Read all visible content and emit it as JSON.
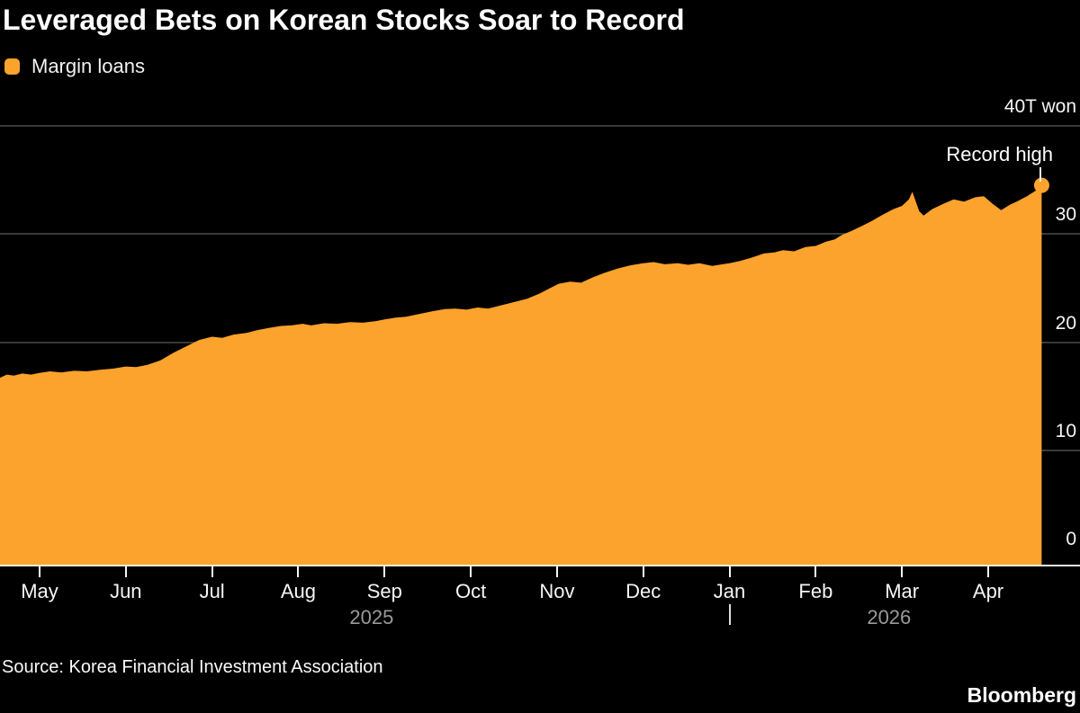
{
  "title": "Leveraged Bets on Korean Stocks Soar to Record",
  "legend": {
    "label": "Margin loans"
  },
  "annotation": {
    "record_high": "Record high"
  },
  "source": "Source: Korea Financial Investment Association",
  "brand": "Bloomberg",
  "colors": {
    "series": "#FBA32C",
    "background": "#000000",
    "gridline": "#3A3A3A",
    "axis_line": "#F2EBDC",
    "tick_mark": "#F5F5F5",
    "tick_label": "#F5F5F5",
    "year_label": "#999999",
    "pointer": "#ECECEC"
  },
  "chart_data": {
    "type": "area",
    "title": "Leveraged Bets on Korean Stocks Soar to Record",
    "series_name": "Margin loans",
    "unit": "trillion won",
    "x_unit": "months, 0 = May 2025 tick ... 11 = Apr 2026 tick",
    "x_range": [
      -0.46,
      11.62
    ],
    "ylim": [
      0,
      40
    ],
    "grid": "horizontal",
    "x_tick_labels": [
      "May",
      "Jun",
      "Jul",
      "Aug",
      "Sep",
      "Oct",
      "Nov",
      "Dec",
      "Jan",
      "Feb",
      "Mar",
      "Apr"
    ],
    "year_labels": [
      {
        "label": "2025",
        "center_month": 3.85
      },
      {
        "label": "2026",
        "center_month": 9.85
      }
    ],
    "year_divider_month": 8.0,
    "y_ticks": [
      {
        "value": 0,
        "label": "0"
      },
      {
        "value": 10,
        "label": "10"
      },
      {
        "value": 20,
        "label": "20"
      },
      {
        "value": 30,
        "label": "30"
      },
      {
        "value": 40,
        "label": "40T won"
      }
    ],
    "gridlines_at": [
      10,
      20,
      30,
      40
    ],
    "annotation": {
      "text": "Record high",
      "at_month": 11.62,
      "at_value": 34.5
    },
    "end_dot": {
      "month": 11.62,
      "value": 34.5
    },
    "points": [
      [
        -0.46,
        16.7
      ],
      [
        -0.38,
        17.0
      ],
      [
        -0.3,
        16.9
      ],
      [
        -0.2,
        17.1
      ],
      [
        -0.1,
        17.0
      ],
      [
        0.0,
        17.15
      ],
      [
        0.12,
        17.3
      ],
      [
        0.25,
        17.2
      ],
      [
        0.4,
        17.35
      ],
      [
        0.55,
        17.3
      ],
      [
        0.7,
        17.45
      ],
      [
        0.85,
        17.55
      ],
      [
        1.0,
        17.75
      ],
      [
        1.12,
        17.7
      ],
      [
        1.25,
        17.9
      ],
      [
        1.4,
        18.3
      ],
      [
        1.55,
        19.0
      ],
      [
        1.7,
        19.6
      ],
      [
        1.85,
        20.2
      ],
      [
        2.0,
        20.5
      ],
      [
        2.12,
        20.4
      ],
      [
        2.25,
        20.7
      ],
      [
        2.4,
        20.85
      ],
      [
        2.52,
        21.1
      ],
      [
        2.65,
        21.3
      ],
      [
        2.8,
        21.5
      ],
      [
        2.92,
        21.55
      ],
      [
        3.05,
        21.7
      ],
      [
        3.15,
        21.55
      ],
      [
        3.3,
        21.75
      ],
      [
        3.45,
        21.7
      ],
      [
        3.6,
        21.85
      ],
      [
        3.75,
        21.8
      ],
      [
        3.9,
        21.95
      ],
      [
        4.0,
        22.1
      ],
      [
        4.12,
        22.25
      ],
      [
        4.25,
        22.35
      ],
      [
        4.4,
        22.6
      ],
      [
        4.55,
        22.85
      ],
      [
        4.7,
        23.05
      ],
      [
        4.82,
        23.1
      ],
      [
        4.95,
        23.0
      ],
      [
        5.08,
        23.2
      ],
      [
        5.2,
        23.1
      ],
      [
        5.35,
        23.4
      ],
      [
        5.5,
        23.7
      ],
      [
        5.65,
        24.0
      ],
      [
        5.8,
        24.5
      ],
      [
        5.92,
        25.0
      ],
      [
        6.02,
        25.4
      ],
      [
        6.15,
        25.6
      ],
      [
        6.28,
        25.5
      ],
      [
        6.42,
        26.0
      ],
      [
        6.55,
        26.4
      ],
      [
        6.7,
        26.8
      ],
      [
        6.85,
        27.1
      ],
      [
        7.0,
        27.3
      ],
      [
        7.12,
        27.4
      ],
      [
        7.25,
        27.2
      ],
      [
        7.4,
        27.3
      ],
      [
        7.52,
        27.15
      ],
      [
        7.65,
        27.3
      ],
      [
        7.8,
        27.05
      ],
      [
        7.92,
        27.2
      ],
      [
        8.0,
        27.3
      ],
      [
        8.12,
        27.5
      ],
      [
        8.25,
        27.8
      ],
      [
        8.4,
        28.2
      ],
      [
        8.52,
        28.3
      ],
      [
        8.62,
        28.5
      ],
      [
        8.75,
        28.4
      ],
      [
        8.88,
        28.8
      ],
      [
        9.0,
        28.9
      ],
      [
        9.12,
        29.3
      ],
      [
        9.22,
        29.5
      ],
      [
        9.3,
        29.9
      ],
      [
        9.42,
        30.3
      ],
      [
        9.55,
        30.8
      ],
      [
        9.65,
        31.2
      ],
      [
        9.78,
        31.8
      ],
      [
        9.9,
        32.3
      ],
      [
        10.0,
        32.6
      ],
      [
        10.08,
        33.2
      ],
      [
        10.12,
        33.9
      ],
      [
        10.2,
        32.1
      ],
      [
        10.25,
        31.7
      ],
      [
        10.35,
        32.3
      ],
      [
        10.48,
        32.8
      ],
      [
        10.6,
        33.2
      ],
      [
        10.72,
        33.0
      ],
      [
        10.85,
        33.4
      ],
      [
        10.95,
        33.5
      ],
      [
        11.05,
        32.8
      ],
      [
        11.15,
        32.2
      ],
      [
        11.25,
        32.7
      ],
      [
        11.33,
        33.0
      ],
      [
        11.45,
        33.5
      ],
      [
        11.55,
        34.0
      ],
      [
        11.62,
        34.5
      ]
    ]
  }
}
